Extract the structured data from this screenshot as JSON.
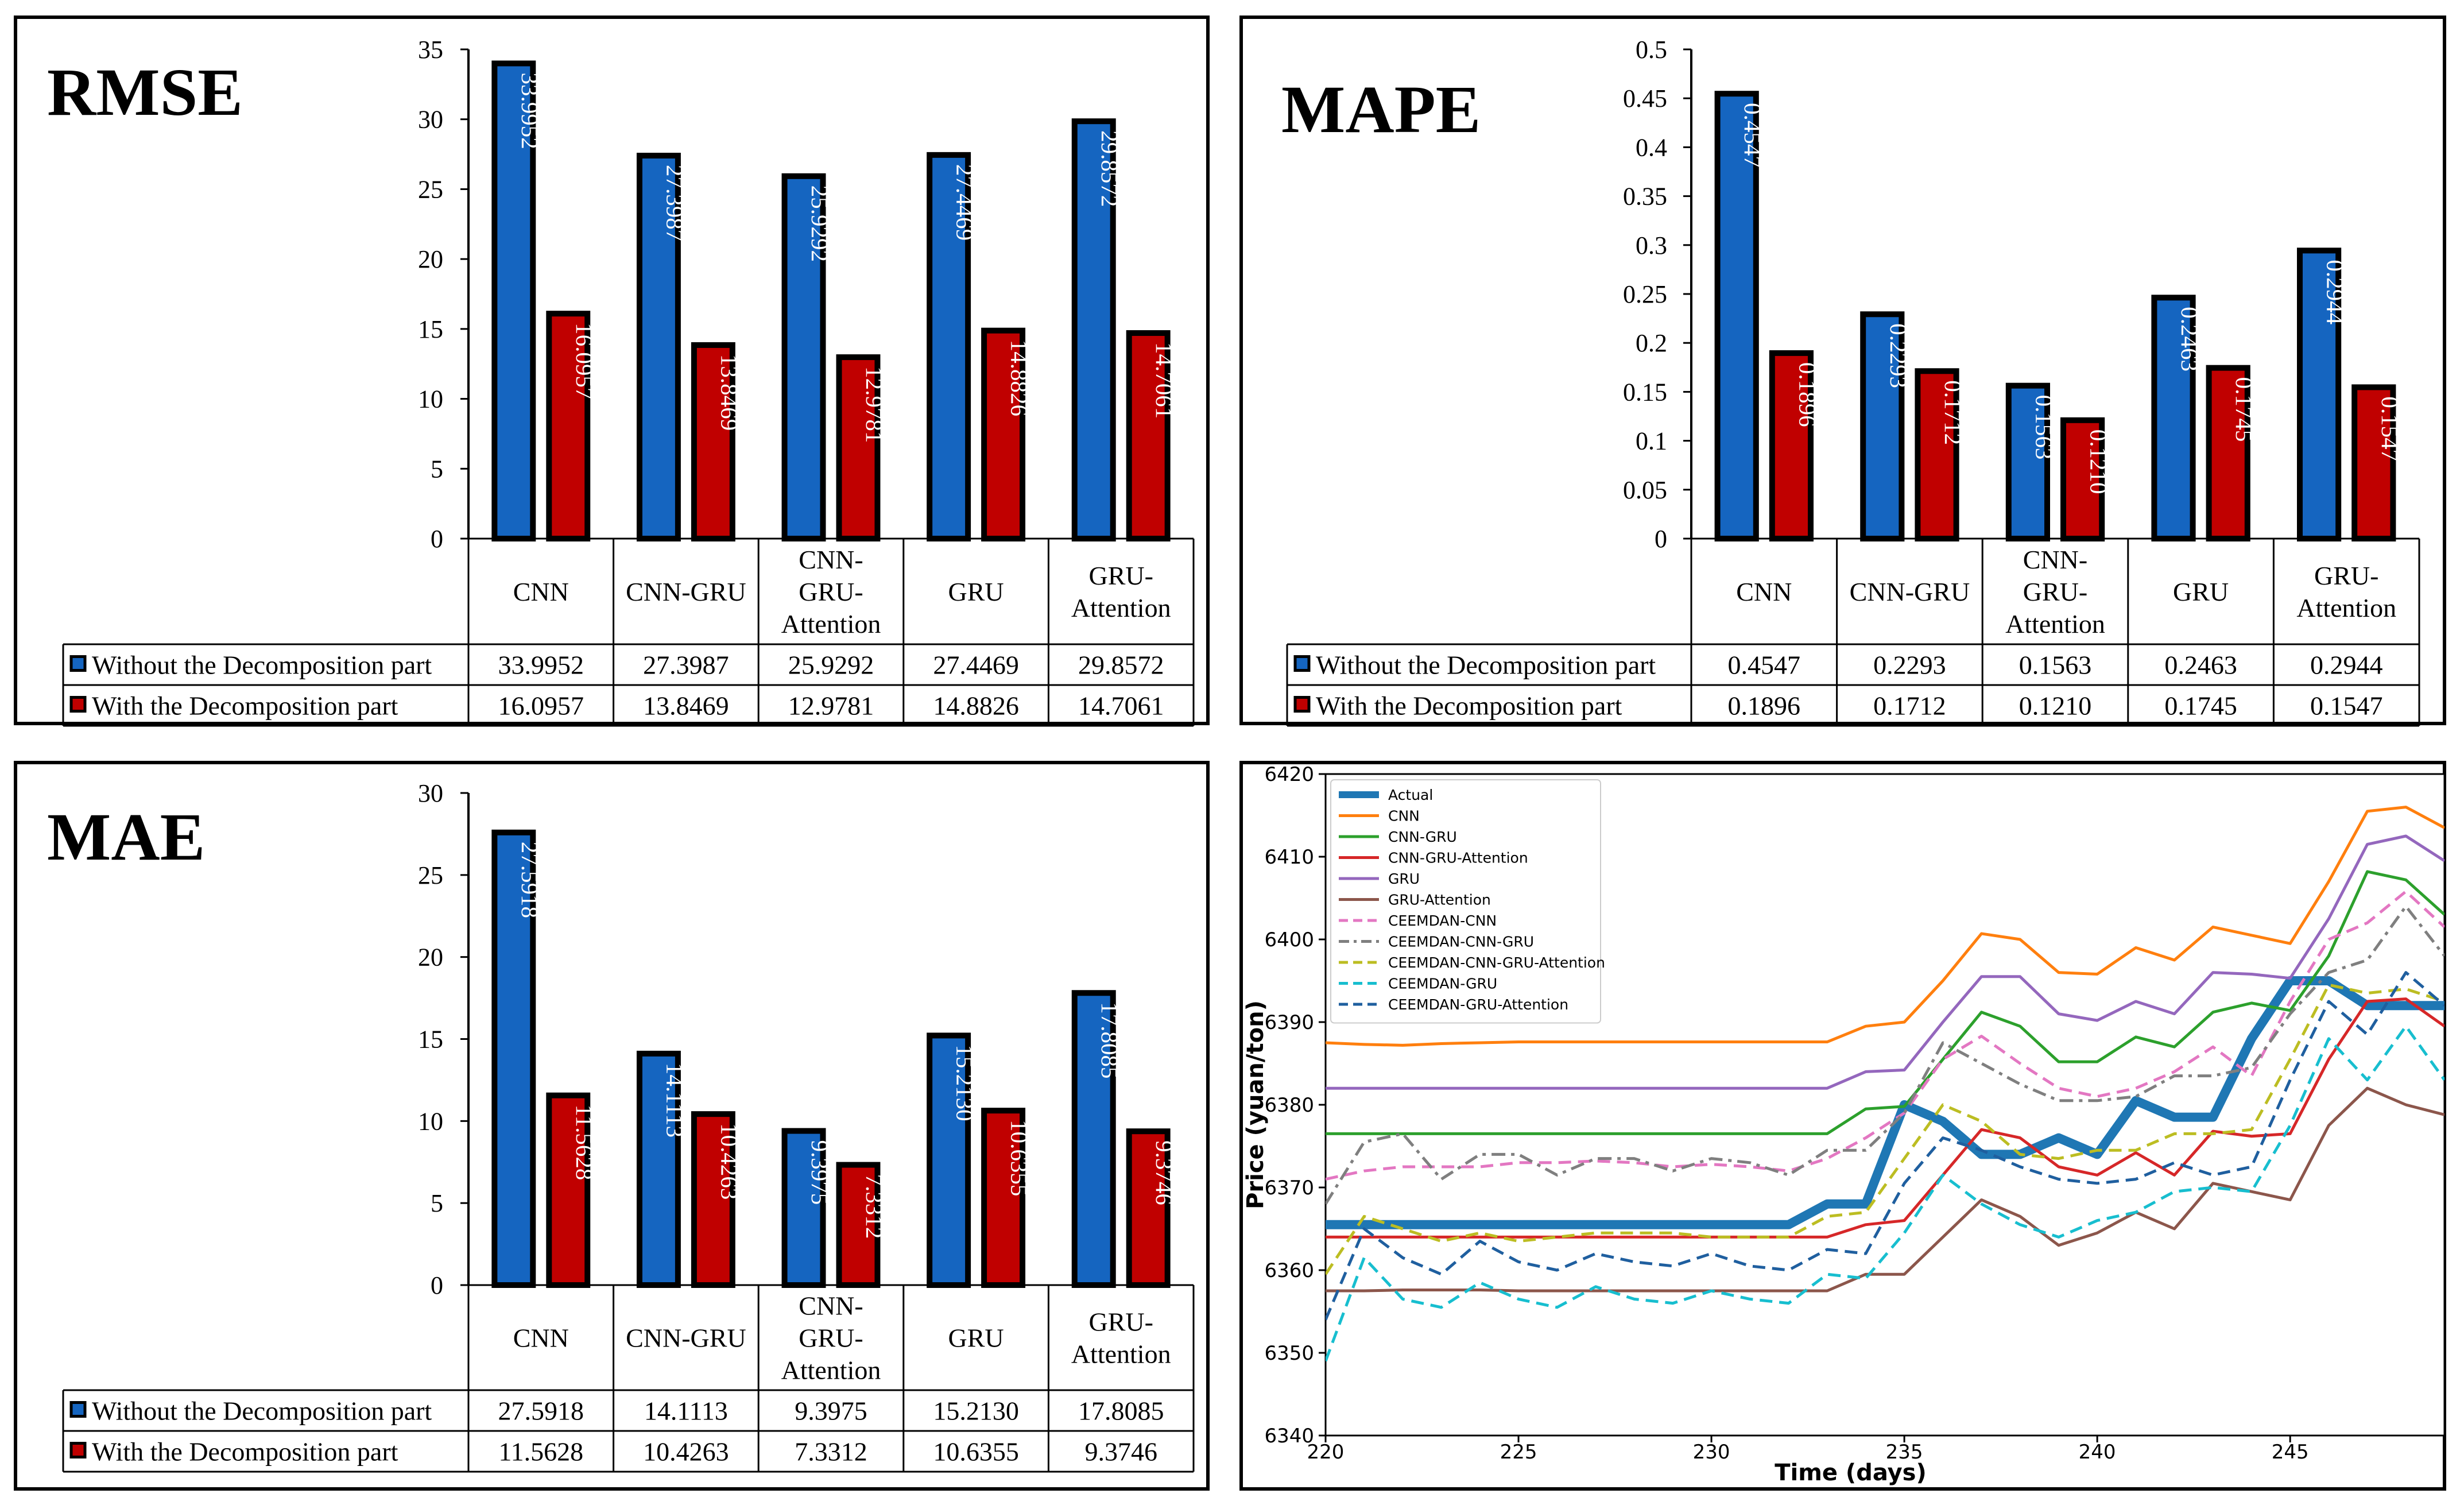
{
  "chart_data": [
    {
      "type": "bar",
      "title": "RMSE",
      "categories": [
        "CNN",
        "CNN-GRU",
        "CNN-\nGRU-\nAttention",
        "GRU",
        "GRU-\nAttention"
      ],
      "series": [
        {
          "name": "Without the Decomposition part",
          "color": "#1565C0",
          "values": [
            33.9952,
            27.3987,
            25.9292,
            27.4469,
            29.8572
          ],
          "labels": [
            "33.9952",
            "27.3987",
            "25.9292",
            "27.4469",
            "29.8572"
          ]
        },
        {
          "name": "With the Decomposition part",
          "color": "#C00000",
          "values": [
            16.0957,
            13.8469,
            12.9781,
            14.8826,
            14.7061
          ],
          "labels": [
            "16.0957",
            "13.8469",
            "12.9781",
            "14.8826",
            "14.7061"
          ]
        }
      ],
      "ylim": [
        0,
        35
      ],
      "yticks": [
        0,
        5,
        10,
        15,
        20,
        25,
        30,
        35
      ],
      "ytick_labels": [
        "0",
        "5",
        "10",
        "15",
        "20",
        "25",
        "30",
        "35"
      ]
    },
    {
      "type": "bar",
      "title": "MAPE",
      "categories": [
        "CNN",
        "CNN-GRU",
        "CNN-\nGRU-\nAttention",
        "GRU",
        "GRU-\nAttention"
      ],
      "series": [
        {
          "name": "Without the Decomposition part",
          "color": "#1565C0",
          "values": [
            0.4547,
            0.2293,
            0.1563,
            0.2463,
            0.2944
          ],
          "labels": [
            "0.4547",
            "0.2293",
            "0.1563",
            "0.2463",
            "0.2944"
          ]
        },
        {
          "name": "With the Decomposition part",
          "color": "#C00000",
          "values": [
            0.1896,
            0.1712,
            0.121,
            0.1745,
            0.1547
          ],
          "labels": [
            "0.1896",
            "0.1712",
            "0.1210",
            "0.1745",
            "0.1547"
          ]
        }
      ],
      "ylim": [
        0,
        0.5
      ],
      "yticks": [
        0,
        0.05,
        0.1,
        0.15,
        0.2,
        0.25,
        0.3,
        0.35,
        0.4,
        0.45,
        0.5
      ],
      "ytick_labels": [
        "0",
        "0.05",
        "0.1",
        "0.15",
        "0.2",
        "0.25",
        "0.3",
        "0.35",
        "0.4",
        "0.45",
        "0.5"
      ]
    },
    {
      "type": "bar",
      "title": "MAE",
      "categories": [
        "CNN",
        "CNN-GRU",
        "CNN-\nGRU-\nAttention",
        "GRU",
        "GRU-\nAttention"
      ],
      "series": [
        {
          "name": "Without the Decomposition part",
          "color": "#1565C0",
          "values": [
            27.5918,
            14.1113,
            9.3975,
            15.213,
            17.8085
          ],
          "labels": [
            "27.5918",
            "14.1113",
            "9.3975",
            "15.2130",
            "17.8085"
          ]
        },
        {
          "name": "With the Decomposition part",
          "color": "#C00000",
          "values": [
            11.5628,
            10.4263,
            7.3312,
            10.6355,
            9.3746
          ],
          "labels": [
            "11.5628",
            "10.4263",
            "7.3312",
            "10.6355",
            "9.3746"
          ]
        }
      ],
      "ylim": [
        0,
        30
      ],
      "yticks": [
        0,
        5,
        10,
        15,
        20,
        25,
        30
      ],
      "ytick_labels": [
        "0",
        "5",
        "10",
        "15",
        "20",
        "25",
        "30"
      ]
    },
    {
      "type": "line",
      "title": "",
      "xlabel": "Time (days)",
      "ylabel": "Price (yuan/ton)",
      "xlim": [
        220,
        249
      ],
      "ylim": [
        6340,
        6420
      ],
      "xticks": [
        220,
        225,
        230,
        235,
        240,
        245
      ],
      "xtick_labels": [
        "220",
        "225",
        "230",
        "235",
        "240",
        "245"
      ],
      "yticks": [
        6340,
        6350,
        6360,
        6370,
        6380,
        6390,
        6400,
        6410,
        6420
      ],
      "ytick_labels": [
        "6340",
        "6350",
        "6360",
        "6370",
        "6380",
        "6390",
        "6400",
        "6410",
        "6420"
      ],
      "legend_position": "top-left",
      "x": [
        220,
        221,
        222,
        223,
        224,
        225,
        226,
        227,
        228,
        229,
        230,
        231,
        232,
        233,
        234,
        235,
        236,
        237,
        238,
        239,
        240,
        241,
        242,
        243,
        244,
        245,
        246,
        247,
        248,
        249
      ],
      "series": [
        {
          "name": "Actual",
          "color": "#1f77b4",
          "style": "solid",
          "bold": true,
          "values": [
            6365.5,
            6365.5,
            6365.5,
            6365.5,
            6365.5,
            6365.5,
            6365.5,
            6365.5,
            6365.5,
            6365.5,
            6365.5,
            6365.5,
            6365.5,
            6368,
            6368,
            6380,
            6378,
            6374,
            6374,
            6376,
            6374,
            6380.5,
            6378.5,
            6378.5,
            6388,
            6395,
            6395,
            6392,
            6392,
            6392
          ]
        },
        {
          "name": "CNN",
          "color": "#ff7f0e",
          "style": "solid",
          "values": [
            6387.5,
            6387.3,
            6387.2,
            6387.4,
            6387.5,
            6387.6,
            6387.6,
            6387.6,
            6387.6,
            6387.6,
            6387.6,
            6387.6,
            6387.6,
            6387.6,
            6389.5,
            6390,
            6395,
            6400.7,
            6400,
            6396,
            6395.8,
            6399,
            6397.5,
            6401.5,
            6400.5,
            6399.5,
            6407,
            6415.5,
            6416,
            6413.5
          ]
        },
        {
          "name": "CNN-GRU",
          "color": "#2ca02c",
          "style": "solid",
          "values": [
            6376.5,
            6376.5,
            6376.5,
            6376.5,
            6376.5,
            6376.5,
            6376.5,
            6376.5,
            6376.5,
            6376.5,
            6376.5,
            6376.5,
            6376.5,
            6376.5,
            6379.5,
            6379.8,
            6385.5,
            6391.2,
            6389.5,
            6385.2,
            6385.2,
            6388.2,
            6387,
            6391.2,
            6392.3,
            6391.4,
            6398,
            6408.2,
            6407.2,
            6403
          ]
        },
        {
          "name": "CNN-GRU-Attention",
          "color": "#d62728",
          "style": "solid",
          "values": [
            6364,
            6364,
            6364,
            6364,
            6364,
            6364,
            6364,
            6364,
            6364,
            6364,
            6364,
            6364,
            6364,
            6364,
            6365.5,
            6366,
            6371.5,
            6377,
            6376,
            6372.5,
            6371.5,
            6374.2,
            6371.5,
            6376.8,
            6376.2,
            6376.5,
            6385.5,
            6392.5,
            6392.8,
            6389.5
          ]
        },
        {
          "name": "GRU",
          "color": "#9467bd",
          "style": "solid",
          "values": [
            6382,
            6382,
            6382,
            6382,
            6382,
            6382,
            6382,
            6382,
            6382,
            6382,
            6382,
            6382,
            6382,
            6382,
            6384,
            6384.2,
            6390,
            6395.5,
            6395.5,
            6391,
            6390.2,
            6392.5,
            6391,
            6396,
            6395.8,
            6395.3,
            6402.5,
            6411.5,
            6412.5,
            6409.5
          ]
        },
        {
          "name": "GRU-Attention",
          "color": "#8c564b",
          "style": "solid",
          "values": [
            6357.5,
            6357.5,
            6357.6,
            6357.6,
            6357.6,
            6357.5,
            6357.5,
            6357.5,
            6357.5,
            6357.5,
            6357.5,
            6357.5,
            6357.5,
            6357.5,
            6359.5,
            6359.5,
            6364,
            6368.5,
            6366.5,
            6363,
            6364.5,
            6367,
            6365,
            6370.5,
            6369.5,
            6368.5,
            6377.5,
            6382,
            6380,
            6378.8
          ]
        },
        {
          "name": "CEEMDAN-CNN",
          "color": "#e377c2",
          "style": "dashed",
          "values": [
            6371,
            6372,
            6372.5,
            6372.5,
            6372.5,
            6373,
            6373,
            6373.2,
            6373,
            6372.5,
            6372.8,
            6372.5,
            6372,
            6373.5,
            6376,
            6379,
            6385.5,
            6388.3,
            6385,
            6382,
            6381,
            6382,
            6384,
            6387,
            6383.5,
            6392.5,
            6400,
            6402,
            6405.8,
            6401.5
          ]
        },
        {
          "name": "CEEMDAN-CNN-GRU",
          "color": "#7f7f7f",
          "style": "dashdot",
          "values": [
            6368,
            6375.5,
            6376.5,
            6371,
            6374,
            6374,
            6371.5,
            6373.5,
            6373.5,
            6372,
            6373.5,
            6373,
            6371.5,
            6374.5,
            6374.5,
            6379,
            6387.5,
            6385,
            6382.5,
            6380.5,
            6380.5,
            6381,
            6383.5,
            6383.5,
            6384.5,
            6391,
            6396,
            6397.5,
            6404,
            6398
          ]
        },
        {
          "name": "CEEMDAN-CNN-GRU-Attention",
          "color": "#bcbd22",
          "style": "dashed",
          "values": [
            6359.5,
            6366.5,
            6365,
            6363.5,
            6364.5,
            6363.5,
            6364,
            6364.5,
            6364.5,
            6364.5,
            6364,
            6364,
            6364,
            6366.5,
            6367,
            6373.5,
            6380,
            6378,
            6374,
            6373.5,
            6374.5,
            6374.5,
            6376.5,
            6376.5,
            6377,
            6385.5,
            6394.5,
            6393.5,
            6394,
            6392.5
          ]
        },
        {
          "name": "CEEMDAN-GRU",
          "color": "#17becf",
          "style": "dashed",
          "values": [
            6349,
            6361.5,
            6356.5,
            6355.5,
            6358.5,
            6356.5,
            6355.5,
            6358,
            6356.5,
            6356,
            6357.5,
            6356.5,
            6356,
            6359.5,
            6359,
            6364.5,
            6371.5,
            6368,
            6365.5,
            6364,
            6366,
            6367,
            6369.5,
            6370,
            6369.5,
            6377.5,
            6388,
            6383,
            6389.5,
            6383
          ]
        },
        {
          "name": "CEEMDAN-GRU-Attention",
          "color": "#1f5f9f",
          "style": "dashed",
          "values": [
            6354,
            6365,
            6361.5,
            6359.5,
            6363.5,
            6361,
            6360,
            6362,
            6361,
            6360.5,
            6362,
            6360.5,
            6360,
            6362.5,
            6362,
            6370.5,
            6376,
            6374.5,
            6372.5,
            6371,
            6370.5,
            6371,
            6373,
            6371.5,
            6372.5,
            6383,
            6392.5,
            6388.5,
            6396,
            6392
          ]
        }
      ]
    }
  ]
}
